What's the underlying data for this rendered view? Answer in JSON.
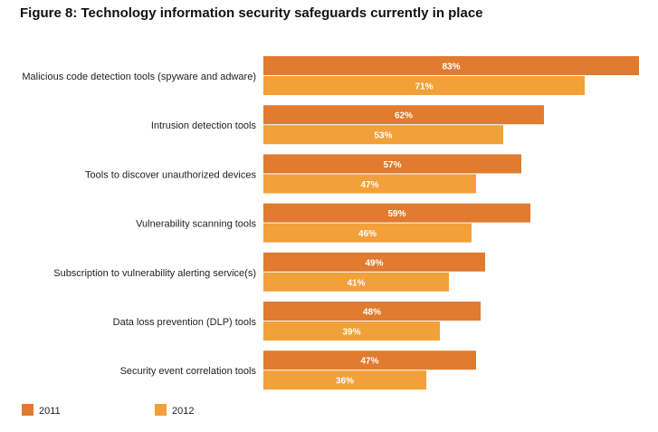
{
  "chart_data": {
    "type": "bar",
    "orientation": "horizontal",
    "title": "Figure 8: Technology information security safeguards currently in place",
    "categories": [
      "Malicious code detection tools (spyware and adware)",
      "Intrusion detection tools",
      "Tools to discover unauthorized devices",
      "Vulnerability scanning tools",
      "Subscription to vulnerability alerting service(s)",
      "Data loss prevention (DLP) tools",
      "Security event correlation tools"
    ],
    "series": [
      {
        "name": "2011",
        "color": "#e07b30",
        "values": [
          83,
          62,
          57,
          59,
          49,
          48,
          47
        ],
        "labels": [
          "83%",
          "62%",
          "57%",
          "59%",
          "49%",
          "48%",
          "47%"
        ]
      },
      {
        "name": "2012",
        "color": "#f2a03a",
        "values": [
          71,
          53,
          47,
          46,
          41,
          39,
          36
        ],
        "labels": [
          "71%",
          "53%",
          "47%",
          "46%",
          "41%",
          "39%",
          "36%"
        ]
      }
    ],
    "value_unit": "%",
    "xlim": [
      0,
      83
    ],
    "grid": false,
    "legend_position": "bottom-left"
  }
}
